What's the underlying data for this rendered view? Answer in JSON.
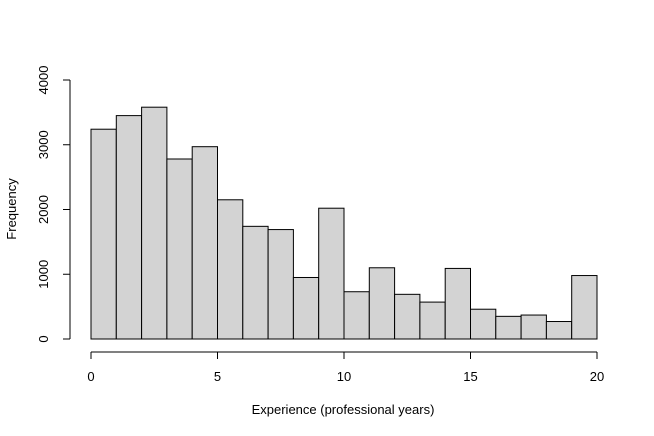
{
  "chart_data": {
    "type": "bar",
    "title": "",
    "xlabel": "Experience (professional years)",
    "ylabel": "Frequency",
    "bin_edges": [
      0,
      1,
      2,
      3,
      4,
      5,
      6,
      7,
      8,
      9,
      10,
      11,
      12,
      13,
      14,
      15,
      16,
      17,
      18,
      19,
      20
    ],
    "values": [
      3240,
      3450,
      3580,
      2780,
      2970,
      2150,
      1740,
      1690,
      950,
      2020,
      730,
      1100,
      690,
      570,
      1090,
      460,
      350,
      370,
      270,
      980
    ],
    "xlim": [
      0,
      20
    ],
    "ylim": [
      0,
      4000
    ],
    "xticks": [
      0,
      5,
      10,
      15,
      20
    ],
    "yticks": [
      0,
      1000,
      2000,
      3000,
      4000
    ],
    "grid": false,
    "bar_color": "#d3d3d3",
    "edge_color": "#000000"
  }
}
